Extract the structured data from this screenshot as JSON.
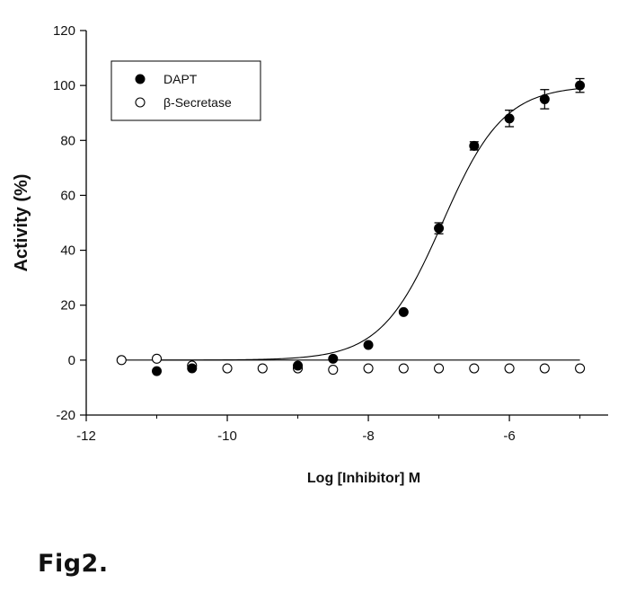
{
  "figure_label": "Fig2.",
  "chart_data": {
    "type": "scatter",
    "xlabel": "Log [Inhibitor] M",
    "ylabel": "Activity (%)",
    "xlim": [
      -12,
      -4.6
    ],
    "ylim": [
      -20,
      120
    ],
    "x_ticks": [
      -12,
      -10,
      -8,
      -6
    ],
    "x_minor_ticks": [
      -11,
      -9,
      -7,
      -5
    ],
    "y_ticks": [
      -20,
      0,
      20,
      40,
      60,
      80,
      100,
      120
    ],
    "grid": false,
    "legend_position": "top-left",
    "reference_line_y": 0,
    "series": [
      {
        "name": "DAPT",
        "marker": "filled-circle",
        "color": "#000000",
        "points": [
          {
            "x": -11.0,
            "y": -4
          },
          {
            "x": -10.5,
            "y": -3
          },
          {
            "x": -9.0,
            "y": -2
          },
          {
            "x": -8.5,
            "y": 0.5
          },
          {
            "x": -8.0,
            "y": 5.5
          },
          {
            "x": -7.5,
            "y": 17.5
          },
          {
            "x": -7.0,
            "y": 48,
            "err": 2
          },
          {
            "x": -6.5,
            "y": 78,
            "err": 1.5
          },
          {
            "x": -6.0,
            "y": 88,
            "err": 3
          },
          {
            "x": -5.5,
            "y": 95,
            "err": 3.5
          },
          {
            "x": -5.0,
            "y": 100,
            "err": 2.5
          }
        ],
        "fit": {
          "model": "sigmoidal",
          "bottom": 0,
          "top": 100,
          "log_ic50": -6.95,
          "hill": 1.0
        }
      },
      {
        "name": "β-Secretase",
        "marker": "open-circle",
        "color": "#000000",
        "points": [
          {
            "x": -11.5,
            "y": 0
          },
          {
            "x": -11.0,
            "y": 0.5
          },
          {
            "x": -10.5,
            "y": -2
          },
          {
            "x": -10.0,
            "y": -3
          },
          {
            "x": -9.5,
            "y": -3
          },
          {
            "x": -9.0,
            "y": -3
          },
          {
            "x": -8.5,
            "y": -3.5
          },
          {
            "x": -8.0,
            "y": -3
          },
          {
            "x": -7.5,
            "y": -3
          },
          {
            "x": -7.0,
            "y": -3
          },
          {
            "x": -6.5,
            "y": -3
          },
          {
            "x": -6.0,
            "y": -3
          },
          {
            "x": -5.5,
            "y": -3
          },
          {
            "x": -5.0,
            "y": -3
          }
        ],
        "fit": {
          "model": "flat",
          "y": 0,
          "x_range": [
            -11.5,
            -5.0
          ]
        }
      }
    ]
  }
}
